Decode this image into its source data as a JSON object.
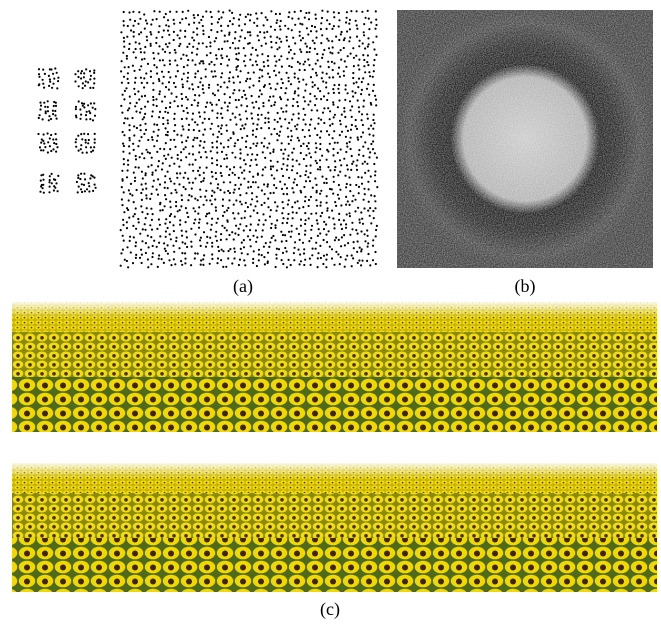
{
  "labels": {
    "a": "(a)",
    "b": "(b)",
    "c": "(c)"
  }
}
